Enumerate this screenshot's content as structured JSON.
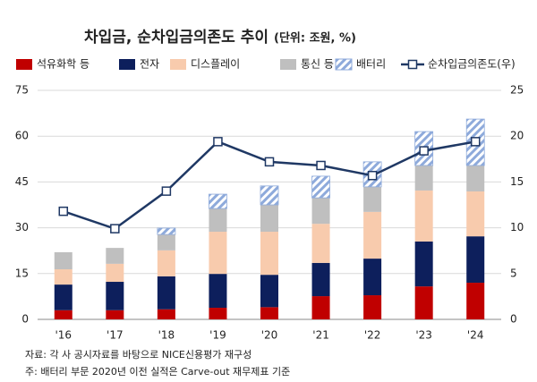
{
  "chart_data": {
    "type": "bar",
    "title": "차입금, 순차입금의존도 추이",
    "subtitle": "(단위: 조원, %)",
    "categories": [
      "'16",
      "'17",
      "'18",
      "'19",
      "'20",
      "'21",
      "'22",
      "'23",
      "'24"
    ],
    "series": [
      {
        "name": "석유화학 등",
        "color": "#c00000",
        "values": [
          3,
          3,
          3.3,
          3.8,
          4,
          7.6,
          7.9,
          10.8,
          12
        ]
      },
      {
        "name": "전자",
        "color": "#0d1f5c",
        "values": [
          8.4,
          9.3,
          10.8,
          11.1,
          10.6,
          10.9,
          12,
          14.7,
          15.2
        ]
      },
      {
        "name": "디스플레이",
        "color": "#f8cbad",
        "values": [
          5,
          5.9,
          8.5,
          13.8,
          14.1,
          12.8,
          15.3,
          16.7,
          14.7
        ]
      },
      {
        "name": "통신 등",
        "color": "#bfbfbf",
        "values": [
          5.6,
          5.2,
          5.2,
          7.6,
          8.8,
          8.5,
          8.2,
          8.2,
          8.5
        ]
      },
      {
        "name": "배터리",
        "color": "#8eaadb",
        "hatch": true,
        "values": [
          0,
          0,
          2.1,
          4.7,
          6.2,
          7.1,
          8.2,
          11.1,
          15.2
        ]
      },
      {
        "name": "순차입금의존도(우)",
        "color": "#1f3864",
        "type": "line",
        "axis": "y2",
        "values": [
          11.8,
          9.9,
          14,
          19.4,
          17.2,
          16.8,
          15.7,
          18.4,
          19.4
        ]
      }
    ],
    "ylim": [
      0,
      75
    ],
    "yticks": [
      0,
      15,
      30,
      45,
      60,
      75
    ],
    "y2lim": [
      0,
      25
    ],
    "y2ticks": [
      0,
      5,
      10,
      15,
      20,
      25
    ],
    "grid": true,
    "notes": [
      "자료: 각 사 공시자료를 바탕으로 NICE신용평가 재구성",
      "주: 배터리 부문 2020년 이전 실적은 Carve-out 재무제표 기준"
    ]
  }
}
